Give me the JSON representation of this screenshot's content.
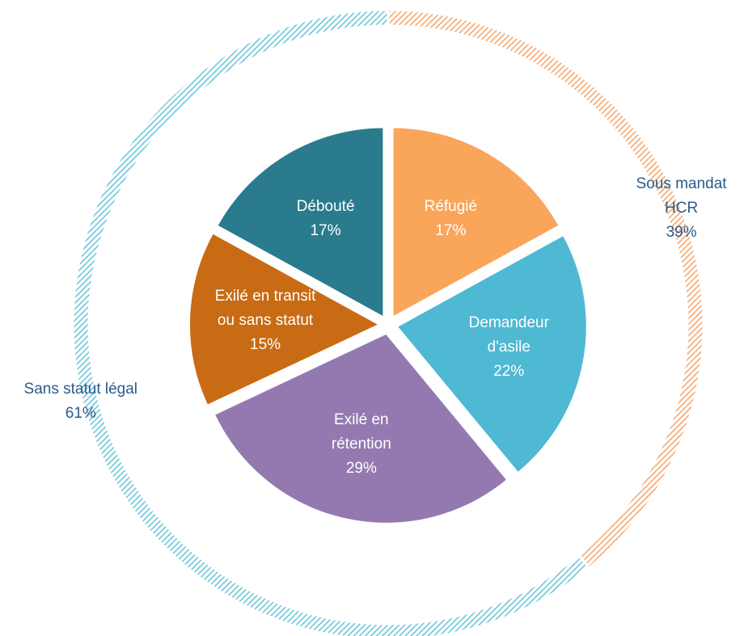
{
  "chart_data": [
    {
      "type": "pie",
      "categories": [
        "Réfugié",
        "Demandeur d'asile",
        "Exilé en rétention",
        "Exilé en transit ou sans statut",
        "Débouté"
      ],
      "values": [
        17,
        22,
        29,
        15,
        17
      ],
      "value_labels": [
        "17%",
        "22%",
        "29%",
        "15%",
        "17%"
      ],
      "colors": [
        "#f9a55a",
        "#4fb8d3",
        "#9479b1",
        "#c86b14",
        "#2a7b8e"
      ]
    },
    {
      "type": "donut",
      "categories": [
        "Sous mandat HCR",
        "Sans statut légal"
      ],
      "values": [
        39,
        61
      ],
      "value_labels": [
        "39%",
        "61%"
      ],
      "colors": [
        "#f7a86c",
        "#6cc6db"
      ]
    }
  ]
}
